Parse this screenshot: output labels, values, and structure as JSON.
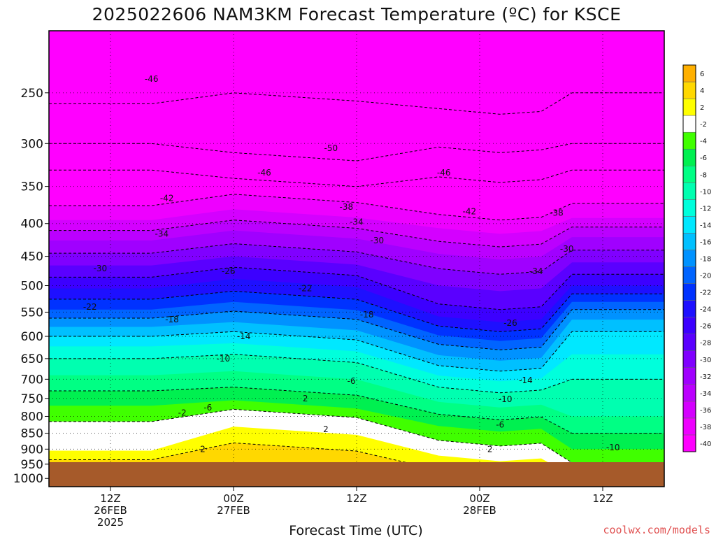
{
  "chart_data": {
    "type": "heatmap",
    "title": "2025022606 NAM3KM Forecast Temperature (ºC) for KSCE",
    "xlabel": "Forecast Time (UTC)",
    "ylabel": "",
    "x_ticks": [
      {
        "hour": 6,
        "lines": [
          "12Z",
          "26FEB",
          "2025"
        ]
      },
      {
        "hour": 18,
        "lines": [
          "00Z",
          "27FEB"
        ]
      },
      {
        "hour": 30,
        "lines": [
          "12Z"
        ]
      },
      {
        "hour": 42,
        "lines": [
          "00Z",
          "28FEB"
        ]
      },
      {
        "hour": 54,
        "lines": [
          "12Z"
        ]
      }
    ],
    "xlim": [
      0,
      60
    ],
    "y_ticks": [
      250,
      300,
      350,
      400,
      450,
      500,
      550,
      600,
      650,
      700,
      750,
      800,
      850,
      900,
      950,
      1000
    ],
    "ylim": [
      200,
      1030
    ],
    "y_scale": "log",
    "surface_pressure_hpa": 965,
    "colorbar": {
      "levels": [
        "-40",
        "-38",
        "-36",
        "-34",
        "-32",
        "-30",
        "-28",
        "-26",
        "-24",
        "-22",
        "-20",
        "-18",
        "-16",
        "-14",
        "-12",
        "-10",
        "-8",
        "-6",
        "-4",
        "-2",
        "2",
        "4",
        "6"
      ],
      "colors": [
        "#ff00ff",
        "#ee00ff",
        "#d400ff",
        "#bb00ff",
        "#a000ff",
        "#8000ff",
        "#5a00ff",
        "#3c00ff",
        "#1e10ff",
        "#0032ff",
        "#0064ff",
        "#0092ff",
        "#00c0ff",
        "#00e8ff",
        "#00ffdc",
        "#00ffb0",
        "#00ff84",
        "#00f050",
        "#40ff00",
        "#ffffff",
        "#ffff00",
        "#ffd800",
        "#ffb000"
      ]
    },
    "contour_labels": [
      {
        "text": "-46",
        "hour": 10,
        "p": 238
      },
      {
        "text": "-50",
        "hour": 27.5,
        "p": 305
      },
      {
        "text": "-46",
        "hour": 21,
        "p": 333
      },
      {
        "text": "-46",
        "hour": 38.5,
        "p": 333
      },
      {
        "text": "-42",
        "hour": 11.5,
        "p": 365
      },
      {
        "text": "-38",
        "hour": 29,
        "p": 377
      },
      {
        "text": "-42",
        "hour": 41,
        "p": 383
      },
      {
        "text": "-38",
        "hour": 49.5,
        "p": 385
      },
      {
        "text": "-34",
        "hour": 30,
        "p": 398
      },
      {
        "text": "-34",
        "hour": 11,
        "p": 415
      },
      {
        "text": "-30",
        "hour": 32,
        "p": 425
      },
      {
        "text": "-30",
        "hour": 50.5,
        "p": 438
      },
      {
        "text": "-30",
        "hour": 5,
        "p": 470
      },
      {
        "text": "-26",
        "hour": 17.5,
        "p": 475
      },
      {
        "text": "-34",
        "hour": 47.5,
        "p": 475
      },
      {
        "text": "-22",
        "hour": 25,
        "p": 505
      },
      {
        "text": "-22",
        "hour": 4,
        "p": 540
      },
      {
        "text": "-18",
        "hour": 31,
        "p": 555
      },
      {
        "text": "-18",
        "hour": 12,
        "p": 565
      },
      {
        "text": "-26",
        "hour": 45,
        "p": 572
      },
      {
        "text": "-14",
        "hour": 19,
        "p": 600
      },
      {
        "text": "-10",
        "hour": 17,
        "p": 650
      },
      {
        "text": "-6",
        "hour": 29.5,
        "p": 705
      },
      {
        "text": "-14",
        "hour": 46.5,
        "p": 703
      },
      {
        "text": "2",
        "hour": 25,
        "p": 750
      },
      {
        "text": "-10",
        "hour": 44.5,
        "p": 752
      },
      {
        "text": "-6",
        "hour": 15.5,
        "p": 775
      },
      {
        "text": "-2",
        "hour": 13,
        "p": 790
      },
      {
        "text": "-6",
        "hour": 44,
        "p": 825
      },
      {
        "text": "2",
        "hour": 27,
        "p": 838
      },
      {
        "text": "2",
        "hour": 15,
        "p": 900
      },
      {
        "text": "2",
        "hour": 43,
        "p": 900
      },
      {
        "text": "-10",
        "hour": 55,
        "p": 895
      }
    ],
    "grid": "dotted"
  },
  "credit": "coolwx.com/models"
}
